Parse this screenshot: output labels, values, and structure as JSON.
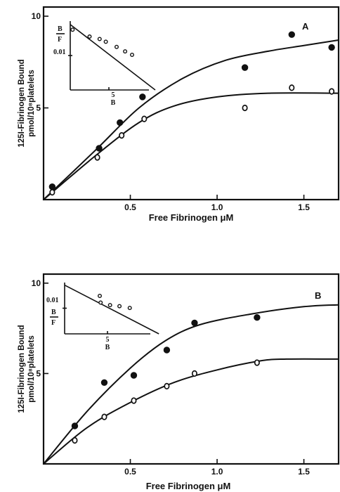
{
  "chart_data": [
    {
      "type": "scatter",
      "panel": "A",
      "xlabel": "Free Fibrinogen μM",
      "ylabel_line1": "125I-Fibrinogen Bound",
      "ylabel_line2": "pmol/10⁸platelets",
      "xlim": [
        0,
        1.7
      ],
      "ylim": [
        0,
        10.5
      ],
      "x_ticks": [
        {
          "value": 0.5,
          "label": "0.5"
        },
        {
          "value": 1.0,
          "label": "1.0"
        },
        {
          "value": 1.5,
          "label": "1.5"
        }
      ],
      "y_ticks": [
        {
          "value": 5,
          "label": "5"
        },
        {
          "value": 10,
          "label": "10"
        }
      ],
      "series": [
        {
          "marker": "filled",
          "points": [
            [
              0.05,
              0.7
            ],
            [
              0.32,
              2.8
            ],
            [
              0.44,
              4.2
            ],
            [
              0.57,
              5.6
            ],
            [
              1.16,
              7.2
            ],
            [
              1.43,
              9.0
            ],
            [
              1.66,
              8.3
            ]
          ],
          "fit_curve": [
            [
              0,
              0
            ],
            [
              0.3,
              2.7
            ],
            [
              0.55,
              5.0
            ],
            [
              0.8,
              6.6
            ],
            [
              1.05,
              7.6
            ],
            [
              1.3,
              8.1
            ],
            [
              1.5,
              8.4
            ],
            [
              1.7,
              8.7
            ]
          ]
        },
        {
          "marker": "open",
          "points": [
            [
              0.05,
              0.4
            ],
            [
              0.31,
              2.3
            ],
            [
              0.45,
              3.5
            ],
            [
              0.58,
              4.4
            ],
            [
              1.16,
              5.0
            ],
            [
              1.43,
              6.1
            ],
            [
              1.66,
              5.9
            ]
          ],
          "fit_curve": [
            [
              0,
              0
            ],
            [
              0.3,
              2.4
            ],
            [
              0.55,
              4.2
            ],
            [
              0.75,
              5.1
            ],
            [
              1.0,
              5.6
            ],
            [
              1.3,
              5.8
            ],
            [
              1.7,
              5.8
            ]
          ]
        }
      ],
      "inset": {
        "y_label_top": "B",
        "y_label_bottom": "F",
        "y_tick_label": "0.01",
        "x_tick_label": "5",
        "x_label": "B",
        "xlim": [
          0,
          10
        ],
        "ylim": [
          0,
          0.02
        ],
        "points": [
          [
            0.3,
            0.0175
          ],
          [
            2.5,
            0.0155
          ],
          [
            3.8,
            0.0148
          ],
          [
            4.6,
            0.014
          ],
          [
            6.0,
            0.0125
          ],
          [
            7.1,
            0.0112
          ],
          [
            8.0,
            0.0102
          ]
        ],
        "line": [
          [
            0,
            0.019
          ],
          [
            11.0,
            0.0
          ]
        ]
      }
    },
    {
      "type": "scatter",
      "panel": "B",
      "xlabel": "Free Fibrinogen μM",
      "ylabel_line1": "125I-Fibrinogen Bound",
      "ylabel_line2": "pmol/10⁸platelets",
      "xlim": [
        0,
        1.7
      ],
      "ylim": [
        0,
        10.5
      ],
      "x_ticks": [
        {
          "value": 0.5,
          "label": "0.5"
        },
        {
          "value": 1.0,
          "label": "1.0"
        },
        {
          "value": 1.5,
          "label": "1.5"
        }
      ],
      "y_ticks": [
        {
          "value": 5,
          "label": "5"
        },
        {
          "value": 10,
          "label": "10"
        }
      ],
      "series": [
        {
          "marker": "filled",
          "points": [
            [
              0.18,
              2.1
            ],
            [
              0.35,
              4.5
            ],
            [
              0.52,
              4.9
            ],
            [
              0.71,
              6.3
            ],
            [
              0.87,
              7.8
            ],
            [
              1.23,
              8.1
            ]
          ],
          "fit_curve": [
            [
              0,
              0
            ],
            [
              0.25,
              2.9
            ],
            [
              0.5,
              5.3
            ],
            [
              0.7,
              6.8
            ],
            [
              0.9,
              7.7
            ],
            [
              1.2,
              8.3
            ],
            [
              1.5,
              8.7
            ],
            [
              1.7,
              8.8
            ]
          ]
        },
        {
          "marker": "open",
          "points": [
            [
              0.18,
              1.3
            ],
            [
              0.35,
              2.6
            ],
            [
              0.52,
              3.5
            ],
            [
              0.71,
              4.3
            ],
            [
              0.87,
              5.0
            ],
            [
              1.23,
              5.6
            ]
          ],
          "fit_curve": [
            [
              0,
              0
            ],
            [
              0.25,
              2.0
            ],
            [
              0.5,
              3.4
            ],
            [
              0.75,
              4.5
            ],
            [
              1.0,
              5.2
            ],
            [
              1.25,
              5.7
            ],
            [
              1.4,
              5.8
            ],
            [
              1.7,
              5.8
            ]
          ]
        }
      ],
      "inset": {
        "y_label_top": "B",
        "y_label_bottom": "F",
        "y_tick_label": "0.01",
        "x_tick_label": "5",
        "x_label": "B",
        "xlim": [
          0,
          10
        ],
        "ylim": [
          0,
          0.02
        ],
        "points": [
          [
            4.1,
            0.0148
          ],
          [
            4.2,
            0.0122
          ],
          [
            5.3,
            0.0112
          ],
          [
            6.4,
            0.0108
          ],
          [
            7.6,
            0.0101
          ]
        ],
        "line": [
          [
            0,
            0.019
          ],
          [
            11.0,
            0.0
          ]
        ]
      }
    }
  ]
}
